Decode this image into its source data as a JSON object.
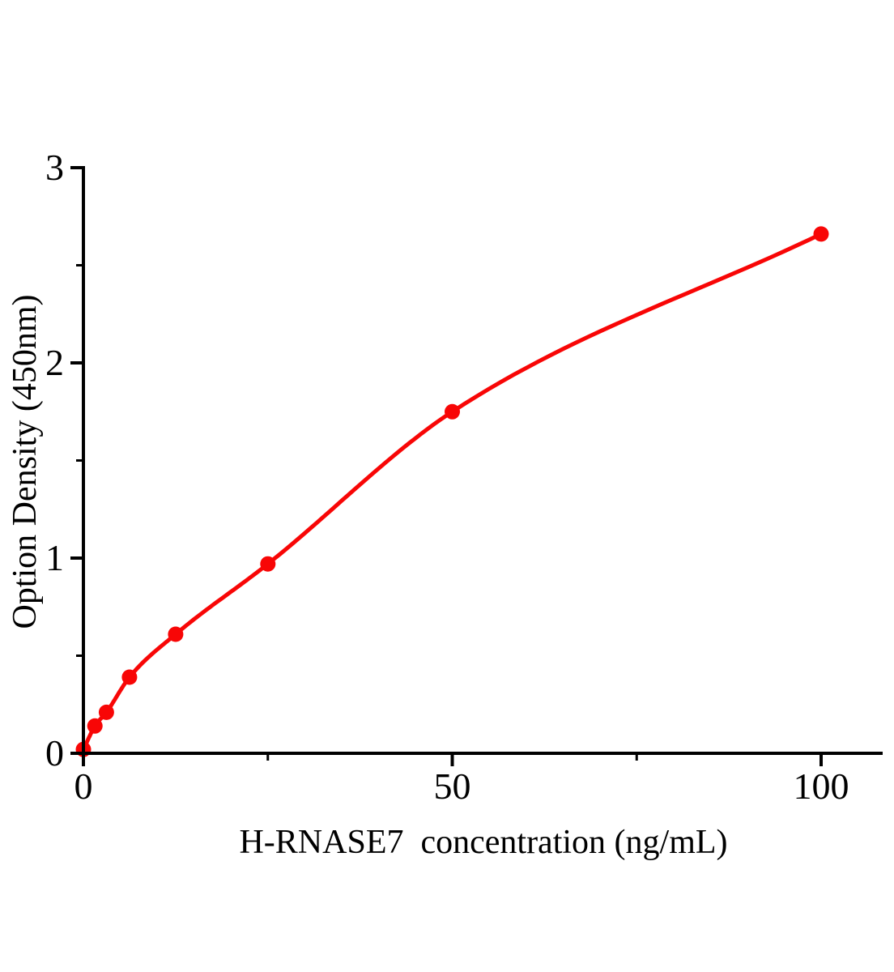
{
  "chart_data": {
    "type": "scatter",
    "subtype": "scatter-with-smooth-fit-curve",
    "title": "",
    "xlabel": "H-RNASE7  concentration (ng/mL)",
    "ylabel": "Option Density (450nm)",
    "xlim": [
      0,
      108.5
    ],
    "ylim": [
      0,
      3
    ],
    "grid": false,
    "legend_position": "none",
    "x_major_ticks": [
      0,
      50,
      100
    ],
    "x_tick_labels": [
      "0",
      "50",
      "100"
    ],
    "x_minor_ticks": [
      25,
      75
    ],
    "y_major_ticks": [
      0,
      1,
      2,
      3
    ],
    "y_tick_labels": [
      "0",
      "1",
      "2",
      "3"
    ],
    "y_minor_ticks": [
      0.5,
      1.5,
      2.5
    ],
    "x": [
      0,
      1.56,
      3.12,
      6.25,
      12.5,
      25,
      50,
      100
    ],
    "y": [
      0.02,
      0.14,
      0.21,
      0.39,
      0.61,
      0.97,
      1.75,
      2.66
    ],
    "colors": {
      "curve": "#f80606",
      "marker": "#f80606",
      "axis": "#000000",
      "background": "#ffffff"
    }
  }
}
